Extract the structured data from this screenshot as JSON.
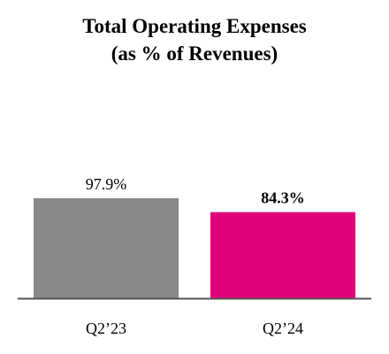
{
  "chart_data": {
    "type": "bar",
    "title": "Total Operating Expenses",
    "subtitle": "(as % of Revenues)",
    "categories": [
      "Q2’23",
      "Q2’24"
    ],
    "values": [
      97.9,
      84.3
    ],
    "data_labels": [
      "97.9%",
      "84.3%"
    ],
    "bold_labels": [
      false,
      true
    ],
    "colors": [
      "#888888",
      "#e2007a"
    ],
    "axis_color": "#555555",
    "xlabel": "",
    "ylabel": "",
    "grid": false,
    "legend": "none"
  }
}
